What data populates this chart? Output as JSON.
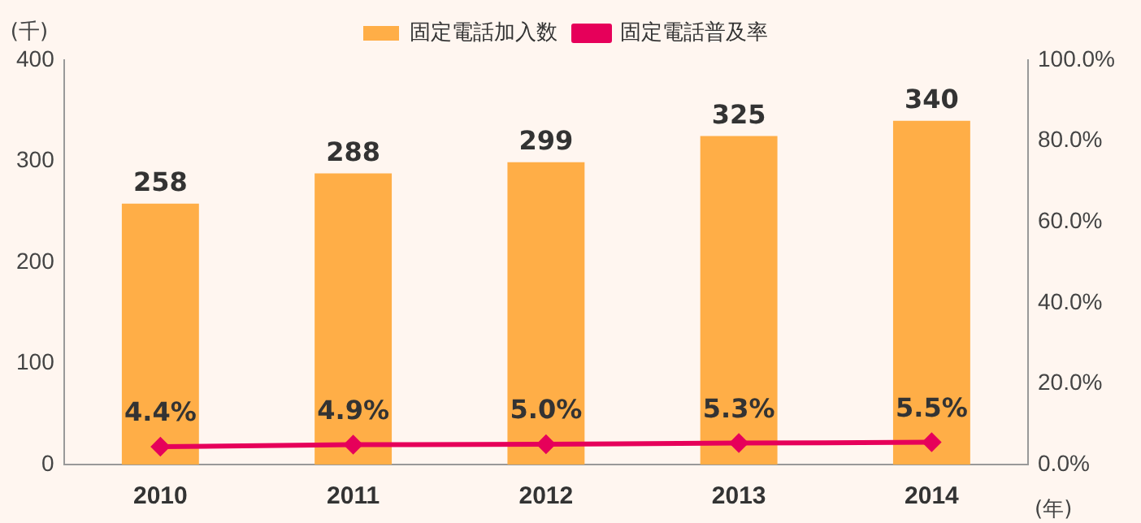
{
  "chart_data": {
    "type": "bar",
    "categories": [
      "2010",
      "2011",
      "2012",
      "2013",
      "2014"
    ],
    "series": [
      {
        "name": "固定電話加入数",
        "color": "#ffae47",
        "values": [
          258,
          288,
          299,
          325,
          340
        ],
        "value_labels": [
          "258",
          "288",
          "299",
          "325",
          "340"
        ]
      },
      {
        "name": "固定電話普及率",
        "type": "line",
        "axis": "y2",
        "color": "#e6005a",
        "values": [
          4.4,
          4.9,
          5.0,
          5.3,
          5.5
        ],
        "value_labels": [
          "4.4%",
          "4.9%",
          "5.0%",
          "5.3%",
          "5.5%"
        ]
      }
    ],
    "ylabel": "(千)",
    "xlabel": "(年)",
    "ylim": [
      0,
      400
    ],
    "yticks": [
      0,
      100,
      200,
      300,
      400
    ],
    "y2lim": [
      0,
      100
    ],
    "y2ticks": [
      {
        "value": 0,
        "label": "0.0%"
      },
      {
        "value": 20,
        "label": "20.0%"
      },
      {
        "value": 40,
        "label": "40.0%"
      },
      {
        "value": 60,
        "label": "60.0%"
      },
      {
        "value": 80,
        "label": "80.0%"
      },
      {
        "value": 100,
        "label": "100.0%"
      }
    ],
    "legend": "top",
    "marker": "diamond",
    "grid": false
  }
}
